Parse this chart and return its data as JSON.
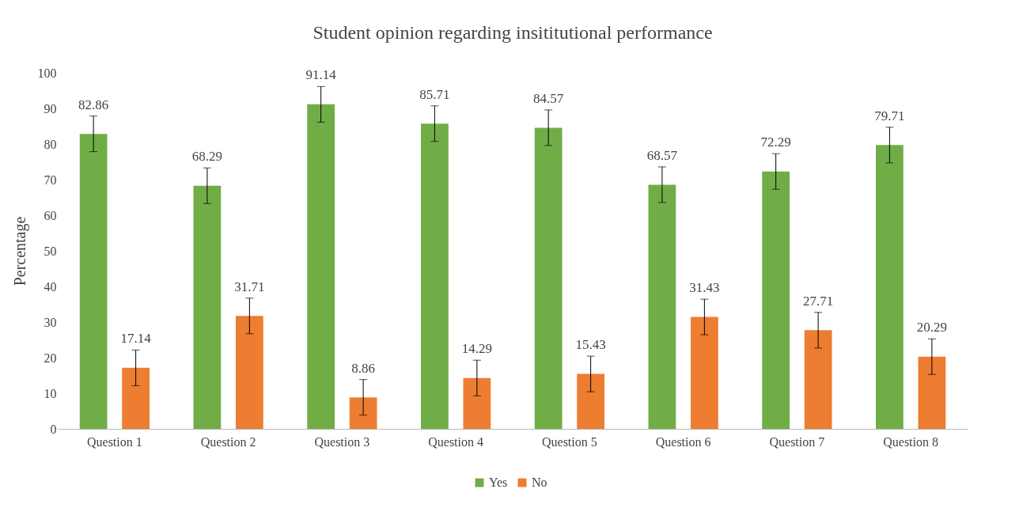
{
  "chart_data": {
    "type": "bar",
    "title": "Student opinion regarding insititutional performance",
    "ylabel": "Percentage",
    "categories": [
      "Question 1",
      "Question 2",
      "Question 3",
      "Question 4",
      "Question 5",
      "Question 6",
      "Question 7",
      "Question 8"
    ],
    "series": [
      {
        "name": "Yes",
        "color": "#70ad47",
        "values": [
          82.86,
          68.29,
          91.14,
          85.71,
          84.57,
          68.57,
          72.29,
          79.71
        ],
        "errors": [
          5,
          5,
          5,
          5,
          5,
          5,
          5,
          5
        ]
      },
      {
        "name": "No",
        "color": "#ed7d31",
        "values": [
          17.14,
          31.71,
          8.86,
          14.29,
          15.43,
          31.43,
          27.71,
          20.29
        ],
        "errors": [
          5,
          5,
          5,
          5,
          5,
          5,
          5,
          5
        ]
      }
    ],
    "ylim": [
      0,
      100
    ],
    "yticks": [
      0,
      10,
      20,
      30,
      40,
      50,
      60,
      70,
      80,
      90,
      100
    ],
    "grid": false,
    "legend": "bottom",
    "data_labels": true
  }
}
